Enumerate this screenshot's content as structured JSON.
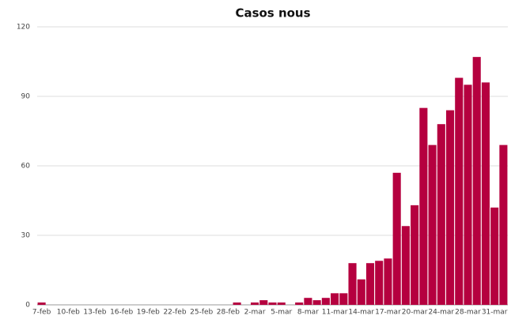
{
  "chart_data": {
    "type": "bar",
    "title": "Casos nous",
    "categories": [
      "7-feb",
      null,
      null,
      "10-feb",
      null,
      null,
      "13-feb",
      null,
      null,
      "16-feb",
      null,
      null,
      "19-feb",
      null,
      null,
      "22-feb",
      null,
      null,
      "25-feb",
      null,
      null,
      "28-feb",
      null,
      null,
      "2-mar",
      null,
      null,
      "5-mar",
      null,
      null,
      "8-mar",
      null,
      null,
      "11-mar",
      null,
      null,
      "14-mar",
      null,
      null,
      "17-mar",
      null,
      null,
      "20-mar",
      null,
      null,
      "24-mar",
      null,
      null,
      "28-mar",
      null,
      null,
      "31-mar",
      null
    ],
    "values": [
      1,
      0,
      0,
      0,
      0,
      0,
      0,
      0,
      0,
      0,
      0,
      0,
      0,
      0,
      0,
      0,
      0,
      0,
      0,
      0,
      0,
      0,
      1,
      0,
      1,
      2,
      1,
      1,
      0,
      1,
      3,
      2,
      3,
      5,
      5,
      18,
      11,
      18,
      19,
      20,
      57,
      34,
      43,
      85,
      69,
      78,
      84,
      98,
      95,
      107,
      96,
      42,
      69
    ],
    "color": "#b5003f",
    "ylim": [
      0,
      120
    ],
    "yticks": [
      0,
      30,
      60,
      90,
      120
    ],
    "grid": true
  }
}
